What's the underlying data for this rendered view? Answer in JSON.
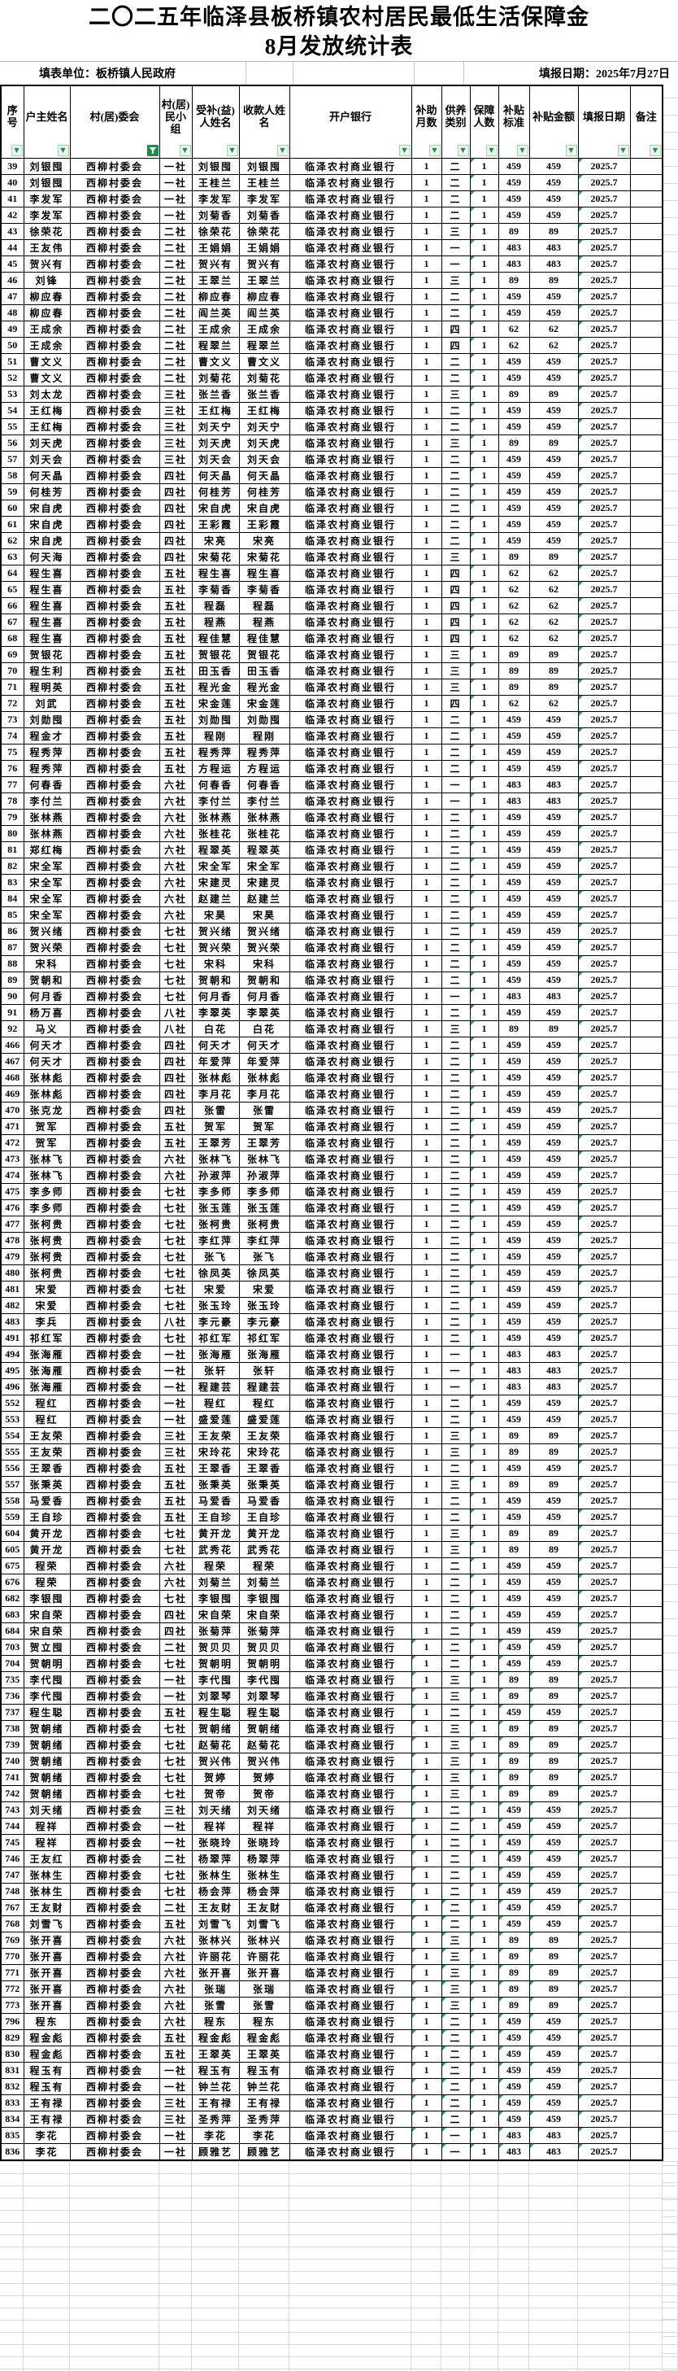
{
  "title": {
    "line1": "二〇二五年临泽县板桥镇农村居民最低生活保障金",
    "line2": "8月发放统计表"
  },
  "subheader": {
    "unit_label": "填表单位：板桥镇人民政府",
    "date_label": "填报日期：2025年7月27日"
  },
  "icons": {
    "dropdown_glyph": "▼",
    "active_filter_color": "#1f8a4c",
    "error_triangle_color": "#2e9e4f"
  },
  "table": {
    "columns": [
      "序号",
      "户主姓名",
      "村(居)委会",
      "村(居)民小组",
      "受补(益)人姓名",
      "收款人姓名",
      "开户银行",
      "补助月数",
      "供养类别",
      "保障人数",
      "补贴标准",
      "补贴金额",
      "填报日期",
      "备注"
    ],
    "constants": {
      "committee": "西柳村委会",
      "bank": "临泽农村商业银行",
      "months": "1",
      "persons": "1",
      "date": "2025.7",
      "remark": ""
    },
    "rows": [
      [
        39,
        "刘银囤",
        "一社",
        "刘银囤",
        "二",
        459
      ],
      [
        40,
        "刘银囤",
        "一社",
        "王桂兰",
        "二",
        459
      ],
      [
        41,
        "李发军",
        "一社",
        "李发军",
        "二",
        459
      ],
      [
        42,
        "李发军",
        "一社",
        "刘菊香",
        "二",
        459
      ],
      [
        43,
        "徐荣花",
        "二社",
        "徐荣花",
        "三",
        89
      ],
      [
        44,
        "王友伟",
        "二社",
        "王娟娟",
        "一",
        483
      ],
      [
        45,
        "贺兴有",
        "二社",
        "贺兴有",
        "一",
        483
      ],
      [
        46,
        "刘锋",
        "二社",
        "王翠兰",
        "三",
        89
      ],
      [
        47,
        "柳应春",
        "二社",
        "柳应春",
        "二",
        459
      ],
      [
        48,
        "柳应春",
        "二社",
        "阎兰英",
        "二",
        459
      ],
      [
        49,
        "王成余",
        "二社",
        "王成余",
        "四",
        62
      ],
      [
        50,
        "王成余",
        "二社",
        "程翠兰",
        "四",
        62
      ],
      [
        51,
        "曹文义",
        "二社",
        "曹文义",
        "二",
        459
      ],
      [
        52,
        "曹文义",
        "二社",
        "刘菊花",
        "二",
        459
      ],
      [
        53,
        "刘太龙",
        "三社",
        "张兰香",
        "三",
        89
      ],
      [
        54,
        "王红梅",
        "三社",
        "王红梅",
        "二",
        459
      ],
      [
        55,
        "王红梅",
        "三社",
        "刘天宁",
        "二",
        459
      ],
      [
        56,
        "刘天虎",
        "三社",
        "刘天虎",
        "三",
        89
      ],
      [
        57,
        "刘天会",
        "三社",
        "刘天会",
        "二",
        459
      ],
      [
        58,
        "何天晶",
        "四社",
        "何天晶",
        "二",
        459
      ],
      [
        59,
        "何桂芳",
        "四社",
        "何桂芳",
        "二",
        459
      ],
      [
        60,
        "宋自虎",
        "四社",
        "宋自虎",
        "二",
        459
      ],
      [
        61,
        "宋自虎",
        "四社",
        "王彩霞",
        "二",
        459
      ],
      [
        62,
        "宋自虎",
        "四社",
        "宋亮",
        "二",
        459
      ],
      [
        63,
        "何天海",
        "四社",
        "宋菊花",
        "三",
        89
      ],
      [
        64,
        "程生喜",
        "五社",
        "程生喜",
        "四",
        62
      ],
      [
        65,
        "程生喜",
        "五社",
        "李菊香",
        "四",
        62
      ],
      [
        66,
        "程生喜",
        "五社",
        "程磊",
        "四",
        62
      ],
      [
        67,
        "程生喜",
        "五社",
        "程燕",
        "四",
        62
      ],
      [
        68,
        "程生喜",
        "五社",
        "程佳慧",
        "四",
        62
      ],
      [
        69,
        "贺银花",
        "五社",
        "贺银花",
        "三",
        89
      ],
      [
        70,
        "程生利",
        "五社",
        "田玉香",
        "三",
        89
      ],
      [
        71,
        "程明英",
        "五社",
        "程光金",
        "三",
        89
      ],
      [
        72,
        "刘武",
        "五社",
        "宋金莲",
        "四",
        62
      ],
      [
        73,
        "刘勋囤",
        "五社",
        "刘勋囤",
        "二",
        459
      ],
      [
        74,
        "程金才",
        "五社",
        "程刚",
        "二",
        459
      ],
      [
        75,
        "程秀萍",
        "五社",
        "程秀萍",
        "二",
        459
      ],
      [
        76,
        "程秀萍",
        "五社",
        "方程运",
        "二",
        459
      ],
      [
        77,
        "何春香",
        "六社",
        "何春香",
        "一",
        483
      ],
      [
        78,
        "李付兰",
        "六社",
        "李付兰",
        "一",
        483
      ],
      [
        79,
        "张林燕",
        "六社",
        "张林燕",
        "二",
        459
      ],
      [
        80,
        "张林燕",
        "六社",
        "张桂花",
        "二",
        459
      ],
      [
        81,
        "郑红梅",
        "六社",
        "程翠英",
        "二",
        459
      ],
      [
        82,
        "宋全军",
        "六社",
        "宋全军",
        "二",
        459
      ],
      [
        83,
        "宋全军",
        "六社",
        "宋建灵",
        "二",
        459
      ],
      [
        84,
        "宋全军",
        "六社",
        "赵建兰",
        "二",
        459
      ],
      [
        85,
        "宋全军",
        "六社",
        "宋昊",
        "二",
        459
      ],
      [
        86,
        "贺兴绪",
        "七社",
        "贺兴绪",
        "二",
        459
      ],
      [
        87,
        "贺兴荣",
        "七社",
        "贺兴荣",
        "二",
        459
      ],
      [
        88,
        "宋科",
        "七社",
        "宋科",
        "二",
        459
      ],
      [
        89,
        "贺朝和",
        "七社",
        "贺朝和",
        "二",
        459
      ],
      [
        90,
        "何月香",
        "七社",
        "何月香",
        "一",
        483
      ],
      [
        91,
        "杨万喜",
        "八社",
        "李翠英",
        "二",
        459
      ],
      [
        92,
        "马义",
        "八社",
        "白花",
        "三",
        89
      ],
      [
        466,
        "何天才",
        "四社",
        "何天才",
        "二",
        459
      ],
      [
        467,
        "何天才",
        "四社",
        "年爱萍",
        "二",
        459
      ],
      [
        468,
        "张林彪",
        "四社",
        "张林彪",
        "二",
        459
      ],
      [
        469,
        "张林彪",
        "四社",
        "李月花",
        "二",
        459
      ],
      [
        470,
        "张克龙",
        "四社",
        "张雷",
        "二",
        459
      ],
      [
        471,
        "贺军",
        "五社",
        "贺军",
        "二",
        459
      ],
      [
        472,
        "贺军",
        "五社",
        "王翠芳",
        "二",
        459
      ],
      [
        473,
        "张林飞",
        "六社",
        "张林飞",
        "二",
        459
      ],
      [
        474,
        "张林飞",
        "六社",
        "孙淑萍",
        "二",
        459
      ],
      [
        475,
        "李多师",
        "七社",
        "李多师",
        "二",
        459
      ],
      [
        476,
        "李多师",
        "七社",
        "张玉莲",
        "二",
        459
      ],
      [
        477,
        "张柯贵",
        "七社",
        "张柯贵",
        "二",
        459
      ],
      [
        478,
        "张柯贵",
        "七社",
        "李红萍",
        "二",
        459
      ],
      [
        479,
        "张柯贵",
        "七社",
        "张飞",
        "二",
        459
      ],
      [
        480,
        "张柯贵",
        "七社",
        "徐凤英",
        "二",
        459
      ],
      [
        481,
        "宋爱",
        "七社",
        "宋爱",
        "二",
        459
      ],
      [
        482,
        "宋爱",
        "七社",
        "张玉玲",
        "二",
        459
      ],
      [
        483,
        "李兵",
        "八社",
        "李元豪",
        "二",
        459
      ],
      [
        491,
        "祁红军",
        "七社",
        "祁红军",
        "二",
        459
      ],
      [
        494,
        "张海雁",
        "一社",
        "张海雁",
        "一",
        483
      ],
      [
        495,
        "张海雁",
        "一社",
        "张轩",
        "一",
        483
      ],
      [
        496,
        "张海雁",
        "一社",
        "程建芸",
        "一",
        483
      ],
      [
        552,
        "程红",
        "一社",
        "程红",
        "二",
        459
      ],
      [
        553,
        "程红",
        "一社",
        "盛爱莲",
        "二",
        459
      ],
      [
        554,
        "王友荣",
        "三社",
        "王友荣",
        "三",
        89
      ],
      [
        555,
        "王友荣",
        "三社",
        "宋玲花",
        "三",
        89
      ],
      [
        556,
        "王翠香",
        "五社",
        "王翠香",
        "二",
        459
      ],
      [
        557,
        "张秉英",
        "五社",
        "张秉英",
        "三",
        89
      ],
      [
        558,
        "马爱香",
        "五社",
        "马爱香",
        "二",
        459
      ],
      [
        559,
        "王自珍",
        "五社",
        "王自珍",
        "二",
        459
      ],
      [
        604,
        "黄开龙",
        "七社",
        "黄开龙",
        "三",
        89
      ],
      [
        605,
        "黄开龙",
        "七社",
        "武秀花",
        "三",
        89
      ],
      [
        675,
        "程荣",
        "六社",
        "程荣",
        "二",
        459
      ],
      [
        676,
        "程荣",
        "六社",
        "刘菊兰",
        "二",
        459
      ],
      [
        682,
        "李银囤",
        "七社",
        "李银囤",
        "二",
        459
      ],
      [
        683,
        "宋自荣",
        "四社",
        "宋自荣",
        "二",
        459
      ],
      [
        684,
        "宋自荣",
        "四社",
        "张菊萍",
        "二",
        459
      ],
      [
        703,
        "贺立囤",
        "二社",
        "贺贝贝",
        "二",
        459
      ],
      [
        704,
        "贺朝明",
        "七社",
        "贺朝明",
        "二",
        459
      ],
      [
        735,
        "李代囤",
        "一社",
        "李代囤",
        "三",
        89
      ],
      [
        736,
        "李代囤",
        "一社",
        "刘翠琴",
        "三",
        89
      ],
      [
        737,
        "程生聪",
        "五社",
        "程生聪",
        "二",
        459
      ],
      [
        738,
        "贺朝绪",
        "七社",
        "贺朝绪",
        "三",
        89
      ],
      [
        739,
        "贺朝绪",
        "七社",
        "赵菊花",
        "三",
        89
      ],
      [
        740,
        "贺朝绪",
        "七社",
        "贺兴伟",
        "三",
        89
      ],
      [
        741,
        "贺朝绪",
        "七社",
        "贺婷",
        "三",
        89
      ],
      [
        742,
        "贺朝绪",
        "七社",
        "贺帝",
        "三",
        89
      ],
      [
        743,
        "刘天绪",
        "三社",
        "刘天绪",
        "二",
        459
      ],
      [
        744,
        "程祥",
        "一社",
        "程祥",
        "二",
        459
      ],
      [
        745,
        "程祥",
        "一社",
        "张晓玲",
        "二",
        459
      ],
      [
        746,
        "王友红",
        "二社",
        "杨翠萍",
        "二",
        459
      ],
      [
        747,
        "张林生",
        "七社",
        "张林生",
        "二",
        459
      ],
      [
        748,
        "张林生",
        "七社",
        "杨会萍",
        "二",
        459
      ],
      [
        767,
        "王友财",
        "二社",
        "王友财",
        "二",
        459
      ],
      [
        768,
        "刘雪飞",
        "五社",
        "刘雪飞",
        "二",
        459
      ],
      [
        769,
        "张开喜",
        "六社",
        "张林兴",
        "三",
        89
      ],
      [
        770,
        "张开喜",
        "六社",
        "许丽花",
        "三",
        89
      ],
      [
        771,
        "张开喜",
        "六社",
        "张开喜",
        "三",
        89
      ],
      [
        772,
        "张开喜",
        "六社",
        "张瑞",
        "三",
        89
      ],
      [
        773,
        "张开喜",
        "六社",
        "张雪",
        "三",
        89
      ],
      [
        796,
        "程东",
        "六社",
        "程东",
        "二",
        459
      ],
      [
        829,
        "程金彪",
        "五社",
        "程金彪",
        "二",
        459
      ],
      [
        830,
        "程金彪",
        "五社",
        "王翠英",
        "二",
        459
      ],
      [
        831,
        "程玉有",
        "一社",
        "程玉有",
        "二",
        459
      ],
      [
        832,
        "程玉有",
        "一社",
        "钟兰花",
        "二",
        459
      ],
      [
        833,
        "王有禄",
        "三社",
        "王有禄",
        "二",
        459
      ],
      [
        834,
        "王有禄",
        "三社",
        "圣秀萍",
        "二",
        459
      ],
      [
        835,
        "李花",
        "一社",
        "李花",
        "一",
        483
      ],
      [
        836,
        "李花",
        "一社",
        "顾雅艺",
        "一",
        483
      ]
    ]
  }
}
